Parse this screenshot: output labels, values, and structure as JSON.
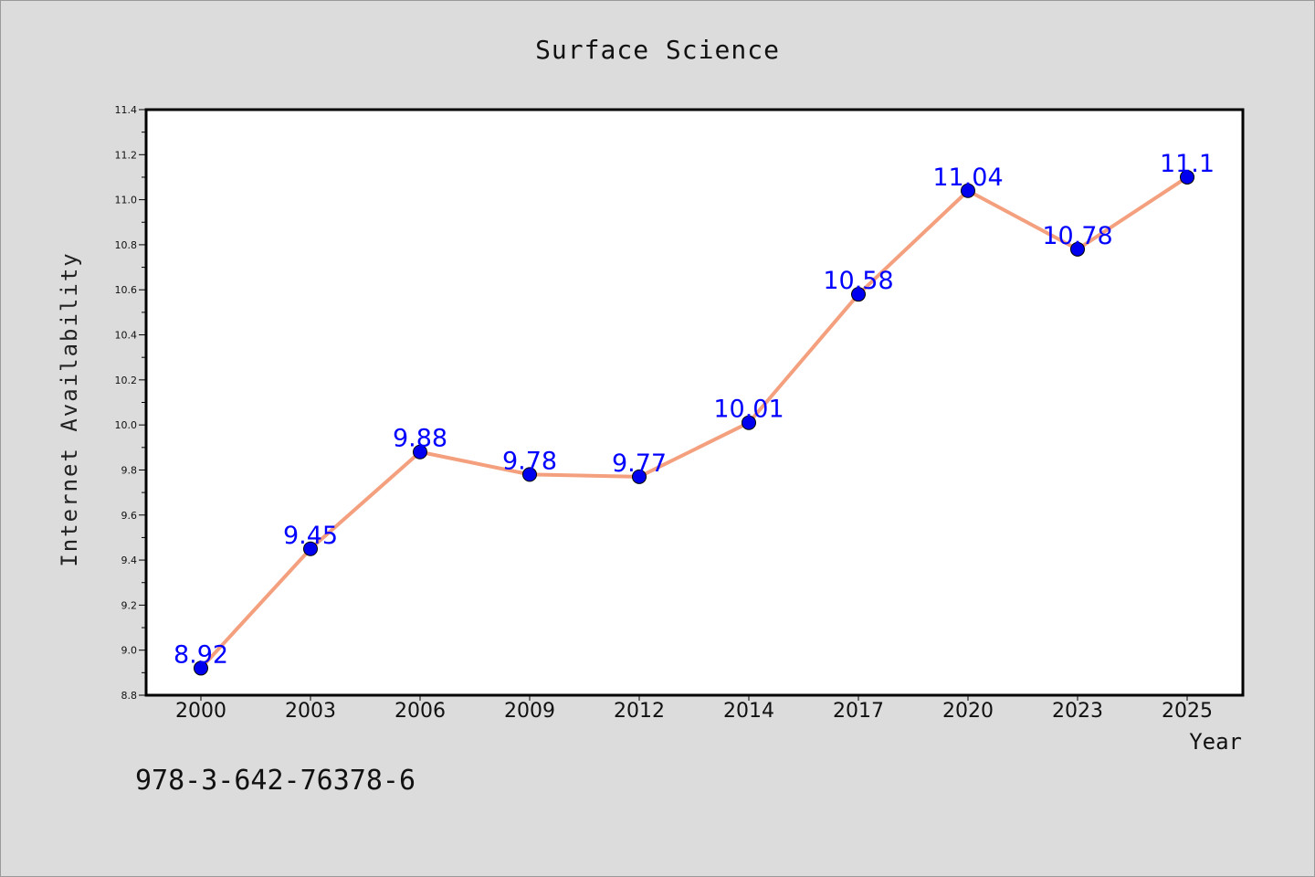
{
  "footer_text": "978-3-642-76378-6",
  "colors": {
    "background": "#dcdcdc",
    "plot_background": "#ffffff",
    "line": "#f4a07e",
    "marker": "#0000ee",
    "data_label": "#0000ff"
  },
  "chart_data": {
    "type": "line",
    "title": "Surface Science",
    "xlabel": "Year",
    "ylabel": "Internet Availability",
    "categories": [
      "2000",
      "2003",
      "2006",
      "2009",
      "2012",
      "2014",
      "2017",
      "2020",
      "2023",
      "2025"
    ],
    "values": [
      8.92,
      9.45,
      9.88,
      9.78,
      9.77,
      10.01,
      10.58,
      11.04,
      10.78,
      11.1
    ],
    "data_labels": [
      "8.92",
      "9.45",
      "9.88",
      "9.78",
      "9.77",
      "10.01",
      "10.58",
      "11.04",
      "10.78",
      "11.1"
    ],
    "ylim": [
      8.8,
      11.4
    ],
    "yticks": [
      "8.8",
      "9.0",
      "9.2",
      "9.4",
      "9.6",
      "9.8",
      "10.0",
      "10.2",
      "10.4",
      "10.6",
      "10.8",
      "11.0",
      "11.2",
      "11.4"
    ],
    "grid": false,
    "legend": "none"
  }
}
